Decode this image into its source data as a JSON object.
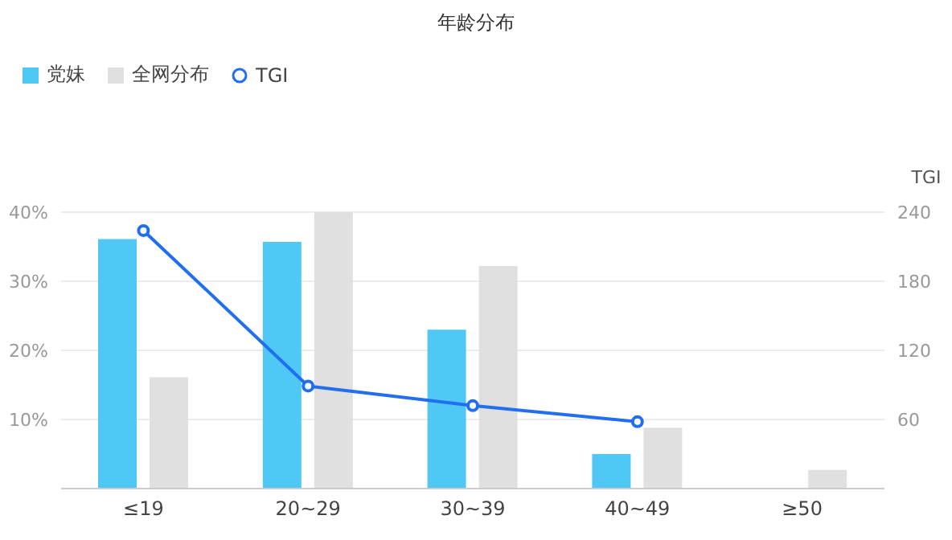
{
  "chart_data": {
    "type": "bar",
    "title": "年龄分布",
    "categories": [
      "≤19",
      "20~29",
      "30~39",
      "40~49",
      "≥50"
    ],
    "series": [
      {
        "name": "党妹",
        "color": "#4fc8f5",
        "values": [
          36.1,
          35.7,
          23.0,
          5.0,
          null
        ]
      },
      {
        "name": "全网分布",
        "color": "#e0e0e0",
        "values": [
          16.1,
          40.0,
          32.2,
          8.8,
          2.7
        ]
      },
      {
        "name": "TGI",
        "type": "line",
        "axis": "y2",
        "color": "#1f6ff0",
        "values": [
          224,
          89,
          72,
          58,
          null
        ]
      }
    ],
    "y2label": "TGI",
    "ylim": [
      0,
      40
    ],
    "yticks": [
      {
        "value": 10,
        "label": "10%"
      },
      {
        "value": 20,
        "label": "20%"
      },
      {
        "value": 30,
        "label": "30%"
      },
      {
        "value": 40,
        "label": "40%"
      }
    ],
    "y2lim": [
      0,
      240
    ],
    "y2ticks": [
      60,
      120,
      180,
      240
    ],
    "grid": "y",
    "legend": "top left",
    "marker": "circle"
  }
}
